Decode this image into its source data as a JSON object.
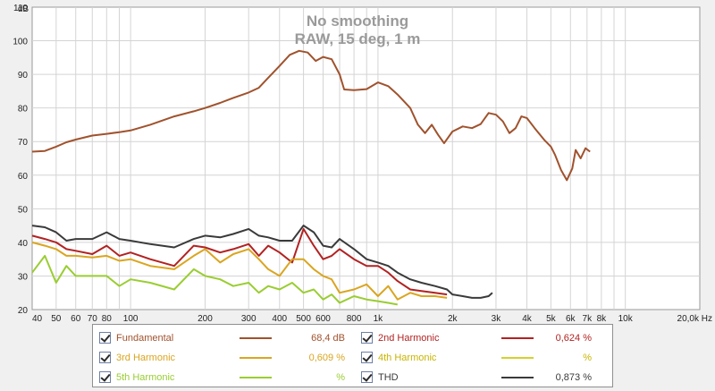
{
  "chart_data": {
    "type": "line",
    "title": "No smoothing",
    "subtitle": "RAW, 15 deg, 1 m",
    "ylabel": "dB",
    "xunit": "Hz",
    "xscale": "log",
    "xlim": [
      40,
      20000
    ],
    "ylim": [
      20,
      110
    ],
    "y_ticks": [
      20,
      30,
      40,
      50,
      60,
      70,
      80,
      90,
      100,
      110
    ],
    "x_ticks": [
      {
        "v": 40,
        "label": "40"
      },
      {
        "v": 50,
        "label": "50"
      },
      {
        "v": 60,
        "label": "60"
      },
      {
        "v": 70,
        "label": "70"
      },
      {
        "v": 80,
        "label": "80"
      },
      {
        "v": 100,
        "label": "100"
      },
      {
        "v": 200,
        "label": "200"
      },
      {
        "v": 300,
        "label": "300"
      },
      {
        "v": 400,
        "label": "400"
      },
      {
        "v": 500,
        "label": "500"
      },
      {
        "v": 600,
        "label": "600"
      },
      {
        "v": 800,
        "label": "800"
      },
      {
        "v": 1000,
        "label": "1k"
      },
      {
        "v": 2000,
        "label": "2k"
      },
      {
        "v": 3000,
        "label": "3k"
      },
      {
        "v": 4000,
        "label": "4k"
      },
      {
        "v": 5000,
        "label": "5k"
      },
      {
        "v": 6000,
        "label": "6k"
      },
      {
        "v": 7000,
        "label": "7k"
      },
      {
        "v": 8000,
        "label": "8k"
      },
      {
        "v": 10000,
        "label": "10k"
      },
      {
        "v": 20000,
        "label": "20,0k Hz"
      }
    ],
    "grid": true,
    "series": [
      {
        "name": "Fundamental",
        "color": "#a0522d",
        "value": "68,4 dB",
        "points": [
          [
            40,
            67
          ],
          [
            45,
            67.2
          ],
          [
            50,
            68.5
          ],
          [
            55,
            69.8
          ],
          [
            60,
            70.6
          ],
          [
            70,
            71.8
          ],
          [
            80,
            72.3
          ],
          [
            90,
            72.8
          ],
          [
            100,
            73.3
          ],
          [
            120,
            75
          ],
          [
            150,
            77.5
          ],
          [
            180,
            79
          ],
          [
            200,
            80
          ],
          [
            230,
            81.5
          ],
          [
            260,
            83
          ],
          [
            300,
            84.6
          ],
          [
            330,
            86
          ],
          [
            360,
            89
          ],
          [
            400,
            92.5
          ],
          [
            440,
            95.8
          ],
          [
            480,
            97
          ],
          [
            520,
            96.5
          ],
          [
            560,
            94
          ],
          [
            600,
            95.2
          ],
          [
            650,
            94.5
          ],
          [
            700,
            90
          ],
          [
            730,
            85.5
          ],
          [
            800,
            85.3
          ],
          [
            900,
            85.6
          ],
          [
            1000,
            87.6
          ],
          [
            1100,
            86.5
          ],
          [
            1200,
            84
          ],
          [
            1350,
            80
          ],
          [
            1450,
            75
          ],
          [
            1550,
            72.5
          ],
          [
            1650,
            75
          ],
          [
            1750,
            72
          ],
          [
            1850,
            69.5
          ],
          [
            2000,
            73
          ],
          [
            2200,
            74.5
          ],
          [
            2400,
            74
          ],
          [
            2600,
            75.2
          ],
          [
            2800,
            78.5
          ],
          [
            3000,
            78
          ],
          [
            3200,
            76
          ],
          [
            3400,
            72.5
          ],
          [
            3600,
            74
          ],
          [
            3800,
            77.5
          ],
          [
            4000,
            77
          ],
          [
            4300,
            74
          ],
          [
            4700,
            70.5
          ],
          [
            5000,
            68.5
          ],
          [
            5200,
            66
          ],
          [
            5500,
            61.5
          ],
          [
            5800,
            58.5
          ],
          [
            6100,
            62
          ],
          [
            6300,
            67.5
          ],
          [
            6600,
            65
          ],
          [
            6900,
            68
          ],
          [
            7200,
            67
          ]
        ]
      },
      {
        "name": "2nd Harmonic",
        "color": "#b22222",
        "value": "0,624 %",
        "points": [
          [
            40,
            42
          ],
          [
            45,
            41
          ],
          [
            50,
            40
          ],
          [
            55,
            38
          ],
          [
            60,
            37.5
          ],
          [
            70,
            36.5
          ],
          [
            80,
            39
          ],
          [
            90,
            36
          ],
          [
            100,
            37
          ],
          [
            120,
            35
          ],
          [
            150,
            33
          ],
          [
            180,
            39
          ],
          [
            200,
            38.5
          ],
          [
            230,
            37
          ],
          [
            260,
            38
          ],
          [
            300,
            39.5
          ],
          [
            330,
            36
          ],
          [
            360,
            39
          ],
          [
            400,
            37
          ],
          [
            450,
            34
          ],
          [
            500,
            44
          ],
          [
            550,
            39
          ],
          [
            600,
            35
          ],
          [
            650,
            36
          ],
          [
            700,
            38
          ],
          [
            800,
            35
          ],
          [
            900,
            33
          ],
          [
            1000,
            33
          ],
          [
            1100,
            31
          ],
          [
            1200,
            28.5
          ],
          [
            1350,
            26
          ],
          [
            1500,
            25.5
          ],
          [
            1700,
            25
          ],
          [
            1900,
            24.5
          ]
        ]
      },
      {
        "name": "3rd Harmonic",
        "color": "#daa520",
        "value": "0,609 %",
        "points": [
          [
            40,
            40
          ],
          [
            45,
            39
          ],
          [
            50,
            38
          ],
          [
            55,
            36
          ],
          [
            60,
            36
          ],
          [
            70,
            35.5
          ],
          [
            80,
            36
          ],
          [
            90,
            34.5
          ],
          [
            100,
            35
          ],
          [
            120,
            33
          ],
          [
            150,
            32
          ],
          [
            180,
            36
          ],
          [
            200,
            38
          ],
          [
            230,
            34
          ],
          [
            260,
            36.5
          ],
          [
            300,
            38
          ],
          [
            330,
            35
          ],
          [
            360,
            32
          ],
          [
            400,
            30
          ],
          [
            450,
            35
          ],
          [
            500,
            35
          ],
          [
            550,
            32
          ],
          [
            600,
            30
          ],
          [
            650,
            29
          ],
          [
            700,
            25
          ],
          [
            800,
            26
          ],
          [
            900,
            27.5
          ],
          [
            1000,
            24
          ],
          [
            1100,
            27
          ],
          [
            1200,
            23
          ],
          [
            1350,
            25
          ],
          [
            1500,
            24
          ],
          [
            1700,
            24
          ],
          [
            1900,
            23.5
          ]
        ]
      },
      {
        "name": "4th Harmonic",
        "color": "#d4d22a",
        "value": "%",
        "points": []
      },
      {
        "name": "5th Harmonic",
        "color": "#9acd32",
        "value": "%",
        "points": [
          [
            40,
            31
          ],
          [
            45,
            36
          ],
          [
            50,
            28
          ],
          [
            55,
            33
          ],
          [
            60,
            30
          ],
          [
            70,
            30
          ],
          [
            80,
            30
          ],
          [
            90,
            27
          ],
          [
            100,
            29
          ],
          [
            120,
            28
          ],
          [
            150,
            26
          ],
          [
            180,
            32
          ],
          [
            200,
            30
          ],
          [
            230,
            29
          ],
          [
            260,
            27
          ],
          [
            300,
            28
          ],
          [
            330,
            25
          ],
          [
            360,
            27
          ],
          [
            400,
            26
          ],
          [
            450,
            28
          ],
          [
            500,
            25
          ],
          [
            550,
            26
          ],
          [
            600,
            23
          ],
          [
            650,
            24.5
          ],
          [
            700,
            22
          ],
          [
            800,
            24
          ],
          [
            900,
            23
          ],
          [
            1000,
            22.5
          ],
          [
            1100,
            22
          ],
          [
            1200,
            21.5
          ]
        ]
      },
      {
        "name": "THD",
        "color": "#3a3a3a",
        "value": "0,873 %",
        "points": [
          [
            40,
            45
          ],
          [
            45,
            44.5
          ],
          [
            50,
            43
          ],
          [
            55,
            40.5
          ],
          [
            60,
            41
          ],
          [
            70,
            41
          ],
          [
            80,
            43
          ],
          [
            90,
            41
          ],
          [
            100,
            40.5
          ],
          [
            120,
            39.5
          ],
          [
            150,
            38.5
          ],
          [
            180,
            41
          ],
          [
            200,
            42
          ],
          [
            230,
            41.5
          ],
          [
            260,
            42.5
          ],
          [
            300,
            44
          ],
          [
            330,
            42
          ],
          [
            360,
            41.5
          ],
          [
            400,
            40.5
          ],
          [
            450,
            40.5
          ],
          [
            500,
            45
          ],
          [
            550,
            43
          ],
          [
            600,
            39
          ],
          [
            650,
            38.5
          ],
          [
            700,
            41
          ],
          [
            800,
            38
          ],
          [
            900,
            35
          ],
          [
            1000,
            34
          ],
          [
            1100,
            33
          ],
          [
            1200,
            31
          ],
          [
            1350,
            29
          ],
          [
            1500,
            28
          ],
          [
            1700,
            27
          ],
          [
            1900,
            26
          ],
          [
            2000,
            24.5
          ],
          [
            2200,
            24
          ],
          [
            2400,
            23.5
          ],
          [
            2600,
            23.5
          ],
          [
            2800,
            24
          ],
          [
            2900,
            25
          ]
        ]
      }
    ]
  },
  "legend": {
    "items": [
      {
        "label": "Fundamental",
        "value": "68,4 dB",
        "color": "#a0522d"
      },
      {
        "label": "2nd Harmonic",
        "value": "0,624 %",
        "color": "#b22222"
      },
      {
        "label": "3rd Harmonic",
        "value": "0,609 %",
        "color": "#daa520"
      },
      {
        "label": "4th Harmonic",
        "value": "%",
        "color": "#d4d22a"
      },
      {
        "label": "5th Harmonic",
        "value": "%",
        "color": "#9acd32"
      },
      {
        "label": "THD",
        "value": "0,873 %",
        "color": "#3a3a3a"
      }
    ]
  }
}
